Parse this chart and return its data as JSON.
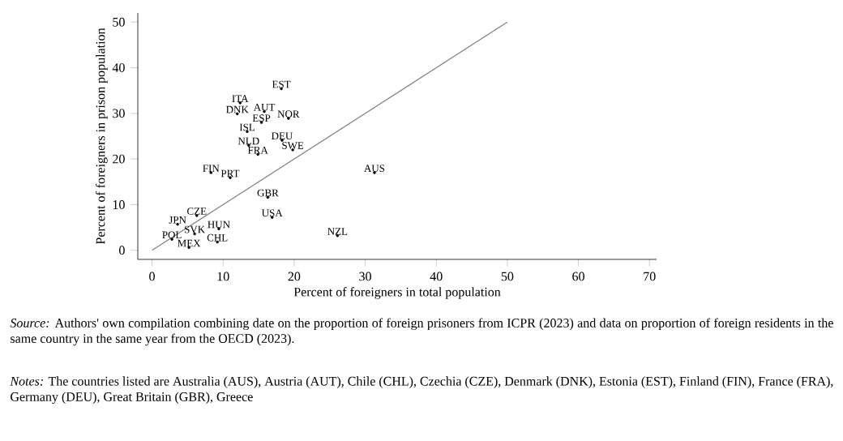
{
  "chart_data": {
    "type": "scatter",
    "xlabel": "Percent of foreigners in total population",
    "ylabel": "Percent of foreigners in prison population",
    "xlim": [
      -2,
      71
    ],
    "ylim": [
      -2,
      52
    ],
    "xticks": [
      0,
      10,
      20,
      30,
      40,
      50,
      60,
      70
    ],
    "yticks": [
      0,
      10,
      20,
      30,
      40,
      50
    ],
    "marker": "circle",
    "series": [
      {
        "type": "line",
        "color": "#808080",
        "marker": "none",
        "x": [
          0,
          50
        ],
        "values": [
          0,
          50
        ]
      },
      {
        "name": "EST",
        "color": "#000000",
        "x": [
          18.2
        ],
        "values": [
          35.4
        ]
      },
      {
        "name": "ITA",
        "color": "#000000",
        "x": [
          12.4
        ],
        "values": [
          32.3
        ]
      },
      {
        "name": "DNK",
        "color": "#000000",
        "x": [
          12.0
        ],
        "values": [
          29.9
        ]
      },
      {
        "name": "AUT",
        "color": "#000000",
        "x": [
          15.8
        ],
        "values": [
          30.4
        ]
      },
      {
        "name": "ESP",
        "color": "#000000",
        "x": [
          15.4
        ],
        "values": [
          28.0
        ]
      },
      {
        "name": "NOR",
        "color": "#000000",
        "x": [
          19.2
        ],
        "values": [
          28.9
        ]
      },
      {
        "name": "ISL",
        "color": "#000000",
        "x": [
          13.4
        ],
        "values": [
          26.0
        ]
      },
      {
        "name": "NLD",
        "color": "#000000",
        "x": [
          13.6
        ],
        "values": [
          23.0
        ]
      },
      {
        "name": "DEU",
        "color": "#000000",
        "x": [
          18.3
        ],
        "values": [
          24.1
        ]
      },
      {
        "name": "FRA",
        "color": "#000000",
        "x": [
          14.9
        ],
        "values": [
          21.0
        ]
      },
      {
        "name": "SWE",
        "color": "#000000",
        "x": [
          19.8
        ],
        "values": [
          22.0
        ]
      },
      {
        "name": "FIN",
        "color": "#000000",
        "x": [
          8.3
        ],
        "values": [
          17.0
        ]
      },
      {
        "name": "PRT",
        "color": "#000000",
        "x": [
          11.0
        ],
        "values": [
          15.9
        ]
      },
      {
        "name": "GBR",
        "color": "#000000",
        "x": [
          16.3
        ],
        "values": [
          11.6
        ]
      },
      {
        "name": "USA",
        "color": "#000000",
        "x": [
          16.9
        ],
        "values": [
          7.2
        ]
      },
      {
        "name": "AUS",
        "color": "#000000",
        "x": [
          31.3
        ],
        "values": [
          17.0
        ]
      },
      {
        "name": "NZL",
        "color": "#000000",
        "x": [
          26.1
        ],
        "values": [
          3.2
        ]
      },
      {
        "name": "CZE",
        "color": "#000000",
        "x": [
          6.3
        ],
        "values": [
          7.6
        ]
      },
      {
        "name": "JPN",
        "color": "#000000",
        "x": [
          3.6
        ],
        "values": [
          5.7
        ]
      },
      {
        "name": "HUN",
        "color": "#000000",
        "x": [
          9.4
        ],
        "values": [
          4.7
        ]
      },
      {
        "name": "SVK",
        "color": "#000000",
        "x": [
          6.0
        ],
        "values": [
          3.6
        ]
      },
      {
        "name": "POL",
        "color": "#000000",
        "x": [
          2.8
        ],
        "values": [
          2.4
        ]
      },
      {
        "name": "CHL",
        "color": "#000000",
        "x": [
          9.2
        ],
        "values": [
          1.8
        ]
      },
      {
        "name": "MEX",
        "color": "#000000",
        "x": [
          5.2
        ],
        "values": [
          0.6
        ]
      }
    ],
    "annotations": [
      "*Source:* Authors' own compilation combining date on the proportion of foreign prisoners from ICPR (2023) and data on proportion of foreign residents in the same country in the same year from the OECD (2023).",
      "*Notes:* The countries listed are Australia (AUS), Austria (AUT), Chile (CHL), Czechia (CZE), Denmark (DNK), Estonia (EST), Finland (FIN), France (FRA), Germany (DEU), Great Britain (GBR), Greece"
    ]
  }
}
